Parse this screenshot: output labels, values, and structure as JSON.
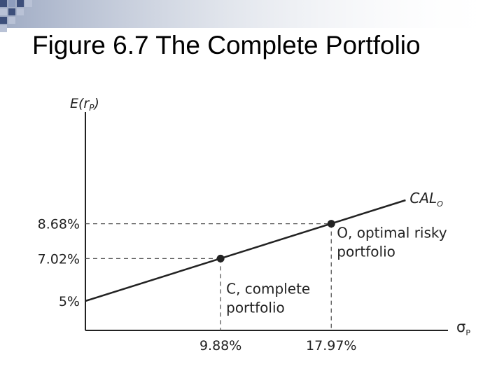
{
  "slide": {
    "title": "Figure 6.7 The Complete Portfolio"
  },
  "chart_data": {
    "type": "line",
    "title": "",
    "xlabel": "σP",
    "ylabel": "E(rP)",
    "xlim": [
      0,
      26.5
    ],
    "ylim": [
      3.6,
      14.0
    ],
    "grid": false,
    "line": {
      "name": "CALO",
      "intercept": 5,
      "x_end": 23.4,
      "points": [
        {
          "x": 0,
          "y": 5
        },
        {
          "x": 23.4,
          "y": 9.8
        }
      ]
    },
    "points": [
      {
        "name": "C",
        "x": 9.88,
        "y": 7.02,
        "x_label": "9.88%",
        "y_label": "7.02%",
        "annotation": [
          "C, complete",
          "portfolio"
        ]
      },
      {
        "name": "O",
        "x": 17.97,
        "y": 8.68,
        "x_label": "17.97%",
        "y_label": "8.68%",
        "annotation": [
          "O, optimal risky",
          "portfolio"
        ]
      }
    ],
    "intercept_label": "5%",
    "colors": {
      "line": "#222222",
      "guides": "#555555",
      "axis": "#222222"
    }
  }
}
